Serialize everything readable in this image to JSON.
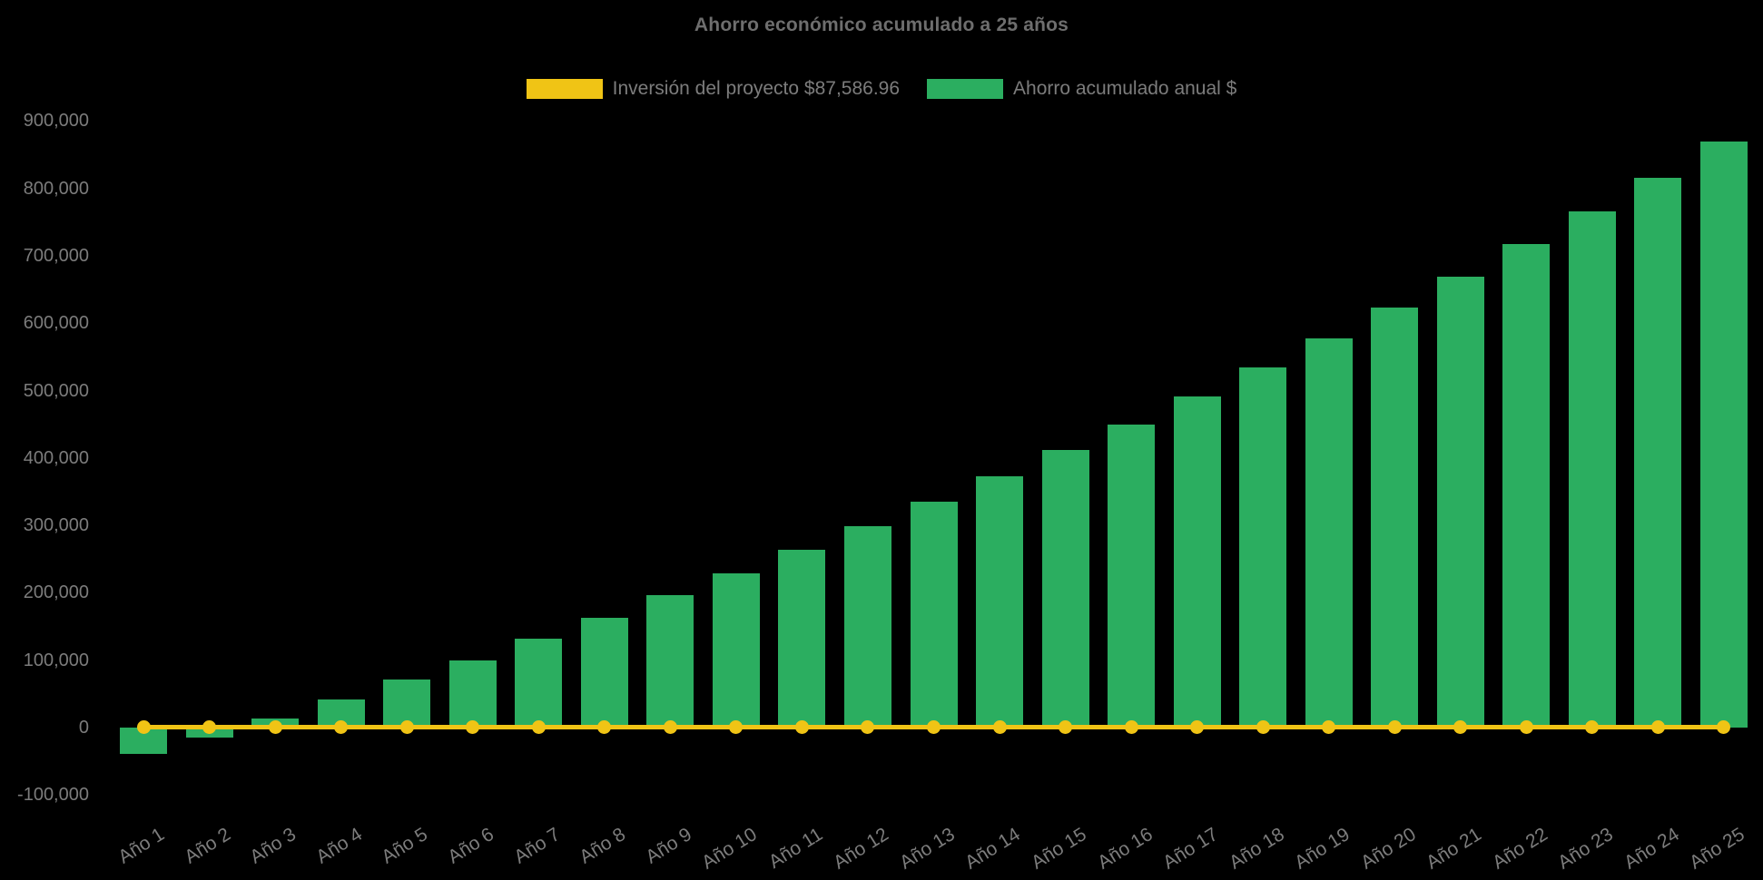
{
  "chart": {
    "title": "Ahorro económico acumulado a 25 años",
    "legend": [
      {
        "label": "Inversión del proyecto $87,586.96",
        "color": "#F0C415",
        "kind": "line"
      },
      {
        "label": "Ahorro acumulado anual $",
        "color": "#2BAE60",
        "kind": "bar"
      }
    ],
    "colors": {
      "background": "#000000",
      "bar_green": "#2BAE60",
      "line_yellow": "#F0C415",
      "title_text": "#6e6e6e",
      "axis_text": "#7c7c7c"
    }
  },
  "chart_data": {
    "type": "bar",
    "title": "Ahorro económico acumulado a 25 años",
    "categories": [
      "Año 1",
      "Año 2",
      "Año 3",
      "Año 4",
      "Año 5",
      "Año 6",
      "Año 7",
      "Año 8",
      "Año 9",
      "Año 10",
      "Año 11",
      "Año 12",
      "Año 13",
      "Año 14",
      "Año 15",
      "Año 16",
      "Año 17",
      "Año 18",
      "Año 19",
      "Año 20",
      "Año 21",
      "Año 22",
      "Año 23",
      "Año 24",
      "Año 25"
    ],
    "series": [
      {
        "name": "Ahorro acumulado anual $",
        "type": "bar",
        "color": "#2BAE60",
        "values": [
          -39000,
          -15000,
          14000,
          42000,
          71000,
          100000,
          132000,
          163000,
          196000,
          229000,
          264000,
          299000,
          335000,
          373000,
          412000,
          450000,
          491000,
          535000,
          578000,
          623000,
          669000,
          717000,
          766000,
          816000,
          869000
        ]
      },
      {
        "name": "Inversión del proyecto $87,586.96",
        "type": "line",
        "color": "#F0C415",
        "values": [
          0,
          0,
          0,
          0,
          0,
          0,
          0,
          0,
          0,
          0,
          0,
          0,
          0,
          0,
          0,
          0,
          0,
          0,
          0,
          0,
          0,
          0,
          0,
          0,
          0
        ]
      }
    ],
    "xlabel": "",
    "ylabel": "",
    "ylim": [
      -100000,
      900000
    ],
    "ytick_step": 100000,
    "yticks": [
      "900,000",
      "800,000",
      "700,000",
      "600,000",
      "500,000",
      "400,000",
      "300,000",
      "200,000",
      "100,000",
      "0",
      "-100,000"
    ],
    "grid": false,
    "legend_position": "top",
    "background": "#000000"
  }
}
